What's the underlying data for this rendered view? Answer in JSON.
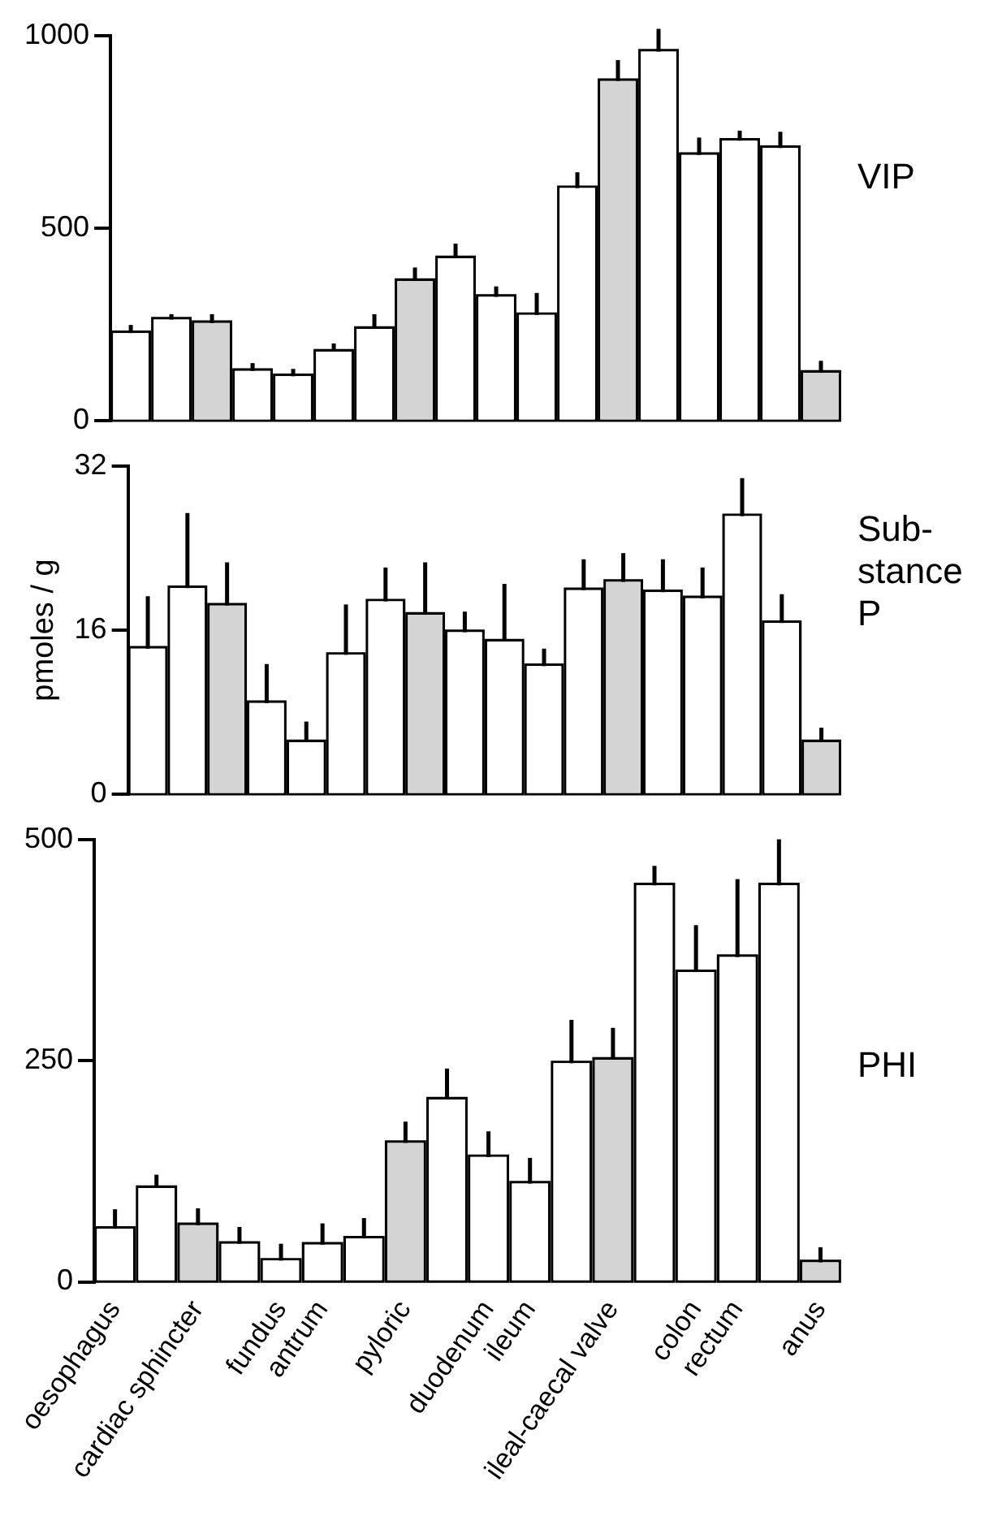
{
  "chart_data": [
    {
      "type": "bar",
      "title": "VIP",
      "categories": [
        null,
        null,
        null,
        null,
        null,
        null,
        null,
        null,
        null,
        null,
        null,
        null,
        null,
        null,
        null,
        null,
        null,
        null
      ],
      "values": [
        228,
        263,
        254,
        130,
        116,
        180,
        239,
        363,
        422,
        322,
        275,
        604,
        882,
        958,
        690,
        727,
        708,
        125
      ],
      "errors": [
        [
          228,
          249
        ],
        [
          263,
          277
        ],
        [
          254,
          277
        ],
        [
          130,
          150
        ],
        [
          116,
          135
        ],
        [
          180,
          201
        ],
        [
          239,
          277
        ],
        [
          363,
          398
        ],
        [
          422,
          460
        ],
        [
          322,
          349
        ],
        [
          275,
          332
        ],
        [
          604,
          645
        ],
        [
          882,
          936
        ],
        [
          958,
          1017
        ],
        [
          690,
          735
        ],
        [
          727,
          753
        ],
        [
          708,
          750
        ],
        [
          125,
          156
        ]
      ],
      "colors": [
        "#ffffff",
        "#ffffff",
        "#d4d4d4",
        "#ffffff",
        "#ffffff",
        "#ffffff",
        "#ffffff",
        "#d4d4d4",
        "#ffffff",
        "#ffffff",
        "#ffffff",
        "#ffffff",
        "#d4d4d4",
        "#ffffff",
        "#ffffff",
        "#ffffff",
        "#ffffff",
        "#d4d4d4"
      ],
      "ylim": [
        0,
        1000
      ],
      "yticks": [
        0,
        500,
        1000
      ],
      "tick_labels": "y",
      "grid": false,
      "legend": false
    },
    {
      "type": "bar",
      "title": "Sub-\nstance\nP",
      "ylabel": "pmoles / g",
      "categories": [
        null,
        null,
        null,
        null,
        null,
        null,
        null,
        null,
        null,
        null,
        null,
        null,
        null,
        null,
        null,
        null,
        null,
        null
      ],
      "values": [
        14.2,
        20.1,
        18.4,
        8.9,
        5.1,
        13.6,
        18.8,
        17.5,
        15.8,
        14.9,
        12.5,
        19.9,
        20.7,
        19.7,
        19.1,
        27.1,
        16.7,
        5.1
      ],
      "errors": [
        [
          14.2,
          19.3
        ],
        [
          20.1,
          27.4
        ],
        [
          18.4,
          22.6
        ],
        [
          8.9,
          12.7
        ],
        [
          5.1,
          7.1
        ],
        [
          13.6,
          18.5
        ],
        [
          18.8,
          22.1
        ],
        [
          17.5,
          22.6
        ],
        [
          15.8,
          17.8
        ],
        [
          14.9,
          20.5
        ],
        [
          12.5,
          14.2
        ],
        [
          19.9,
          22.9
        ],
        [
          20.7,
          23.5
        ],
        [
          19.7,
          22.9
        ],
        [
          19.1,
          22.1
        ],
        [
          27.1,
          30.8
        ],
        [
          16.7,
          19.5
        ],
        [
          5.1,
          6.5
        ]
      ],
      "colors": [
        "#ffffff",
        "#ffffff",
        "#d4d4d4",
        "#ffffff",
        "#ffffff",
        "#ffffff",
        "#ffffff",
        "#d4d4d4",
        "#ffffff",
        "#ffffff",
        "#ffffff",
        "#ffffff",
        "#d4d4d4",
        "#ffffff",
        "#ffffff",
        "#ffffff",
        "#ffffff",
        "#d4d4d4"
      ],
      "ylim": [
        0,
        32
      ],
      "yticks": [
        0,
        16,
        32
      ],
      "tick_labels": "y",
      "grid": false,
      "legend": false
    },
    {
      "type": "bar",
      "title": "PHI",
      "categories": [
        "oesophagus",
        null,
        "cardiac sphincter",
        null,
        "fundus",
        "antrum",
        null,
        "pyloric",
        null,
        "duodenum",
        "ileum",
        null,
        "ileal-caecal valve",
        null,
        "colon",
        "rectum",
        null,
        "anus"
      ],
      "values": [
        60,
        106,
        64,
        43,
        24,
        42,
        49,
        157,
        206,
        141,
        111,
        247,
        251,
        448,
        350,
        367,
        448,
        22
      ],
      "errors": [
        [
          60,
          82
        ],
        [
          106,
          121
        ],
        [
          64,
          83
        ],
        [
          43,
          62
        ],
        [
          24,
          43
        ],
        [
          42,
          66
        ],
        [
          49,
          72
        ],
        [
          157,
          181
        ],
        [
          206,
          241
        ],
        [
          141,
          170
        ],
        [
          111,
          140
        ],
        [
          247,
          296
        ],
        [
          251,
          287
        ],
        [
          448,
          470
        ],
        [
          350,
          403
        ],
        [
          367,
          455
        ],
        [
          448,
          500
        ],
        [
          22,
          39
        ]
      ],
      "colors": [
        "#ffffff",
        "#ffffff",
        "#d4d4d4",
        "#ffffff",
        "#ffffff",
        "#ffffff",
        "#ffffff",
        "#d4d4d4",
        "#ffffff",
        "#ffffff",
        "#ffffff",
        "#ffffff",
        "#d4d4d4",
        "#ffffff",
        "#ffffff",
        "#ffffff",
        "#ffffff",
        "#d4d4d4"
      ],
      "ylim": [
        0,
        500
      ],
      "yticks": [
        0,
        250,
        500
      ],
      "grid": false,
      "legend": false
    }
  ]
}
